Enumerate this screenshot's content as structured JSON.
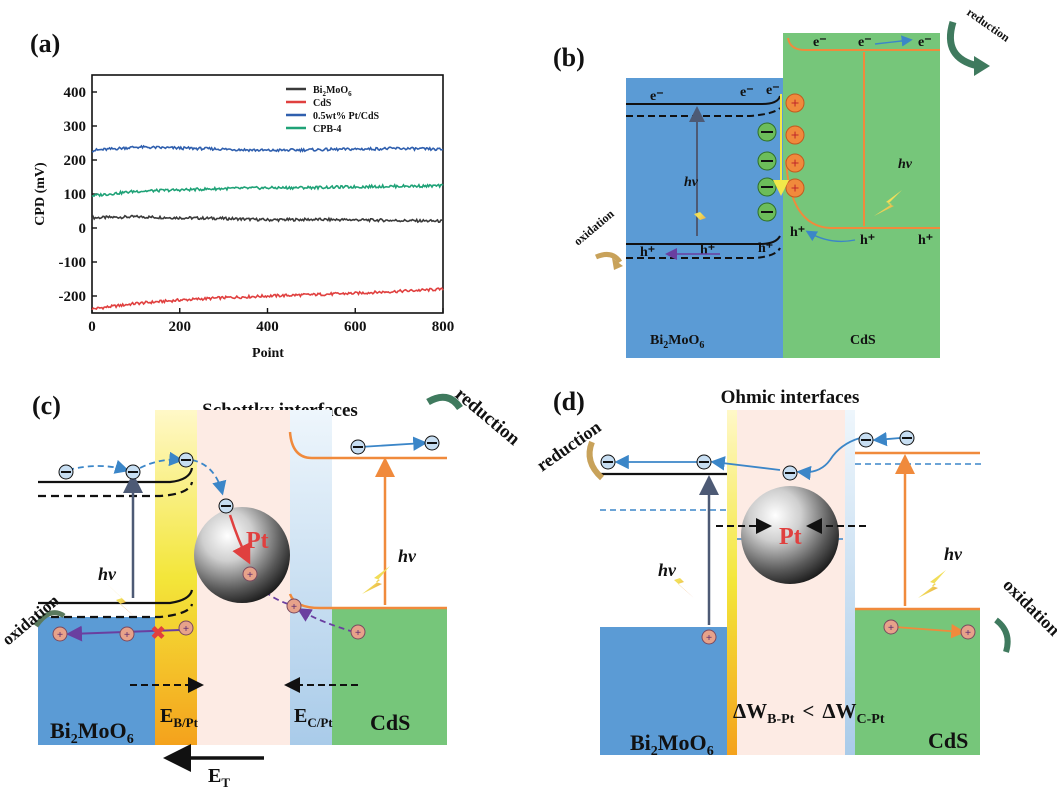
{
  "panels": {
    "a": "(a)",
    "b": "(b)",
    "c": "(c)",
    "d": "(d)"
  },
  "chart_data": {
    "type": "line",
    "xlabel": "Point",
    "ylabel": "CPD (mV)",
    "xlim": [
      0,
      800
    ],
    "ylim": [
      -250,
      450
    ],
    "xticks": [
      0,
      200,
      400,
      600,
      800
    ],
    "yticks": [
      -200,
      -100,
      0,
      100,
      200,
      300,
      400
    ],
    "legend_position": "top-right",
    "series": [
      {
        "name": "Bi2MoO6",
        "color": "#3a3a3a",
        "x": [
          0,
          100,
          200,
          300,
          400,
          500,
          600,
          700,
          800
        ],
        "values": [
          30,
          33,
          30,
          28,
          24,
          25,
          24,
          22,
          20
        ]
      },
      {
        "name": "CdS",
        "color": "#e0403f",
        "x": [
          0,
          100,
          200,
          300,
          400,
          500,
          600,
          700,
          800
        ],
        "values": [
          -238,
          -222,
          -212,
          -205,
          -200,
          -196,
          -192,
          -186,
          -180
        ]
      },
      {
        "name": "0.5wt% Pt/CdS",
        "color": "#2f5fae",
        "x": [
          0,
          100,
          200,
          300,
          400,
          500,
          600,
          700,
          800
        ],
        "values": [
          228,
          238,
          235,
          232,
          228,
          230,
          232,
          234,
          231
        ]
      },
      {
        "name": "CPB-4",
        "color": "#1fa277",
        "x": [
          0,
          100,
          200,
          300,
          400,
          500,
          600,
          700,
          800
        ],
        "values": [
          95,
          108,
          112,
          116,
          118,
          119,
          121,
          123,
          124
        ]
      }
    ]
  },
  "legend": [
    {
      "base": "Bi",
      "sub1": "2",
      "mid": "MoO",
      "sub2": "6",
      "color": "#3a3a3a"
    },
    {
      "base": "CdS",
      "sub1": "",
      "mid": "",
      "sub2": "",
      "color": "#e0403f"
    },
    {
      "base": "0.5wt% Pt/CdS",
      "sub1": "",
      "mid": "",
      "sub2": "",
      "color": "#2f5fae"
    },
    {
      "base": "CPB-4",
      "sub1": "",
      "mid": "",
      "sub2": "",
      "color": "#1fa277"
    }
  ],
  "panel_b": {
    "reduction": "reduction",
    "oxidation": "oxidation",
    "hv": "hν",
    "electron": "e⁻",
    "hole": "h⁺",
    "left_material": {
      "a": "Bi",
      "b": "2",
      "c": "MoO",
      "d": "6"
    },
    "right_material": "CdS",
    "colors": {
      "bi2moo6": "#5b9bd5",
      "cds": "#76c67a",
      "cds_band": "#f08a3c"
    }
  },
  "panel_c": {
    "title": "Schottky interfaces",
    "reduction": "reduction",
    "oxidation": "oxidation",
    "hv": "hν",
    "pt": "Pt",
    "left_material": {
      "a": "Bi",
      "b": "2",
      "c": "MoO",
      "d": "6"
    },
    "right_material": "CdS",
    "field_b": {
      "a": "E",
      "b": "B/Pt"
    },
    "field_c": {
      "a": "E",
      "b": "C/Pt"
    },
    "field_t": {
      "a": "E",
      "b": "T"
    }
  },
  "panel_d": {
    "title": "Ohmic interfaces",
    "reduction": "reduction",
    "oxidation": "oxidation",
    "hv": "hν",
    "pt": "Pt",
    "left_material": {
      "a": "Bi",
      "b": "2",
      "c": "MoO",
      "d": "6"
    },
    "right_material": "CdS",
    "delta_b": {
      "a": "ΔW",
      "b": "B-Pt"
    },
    "lt": "<",
    "delta_c": {
      "a": "ΔW",
      "b": "C-Pt"
    }
  }
}
